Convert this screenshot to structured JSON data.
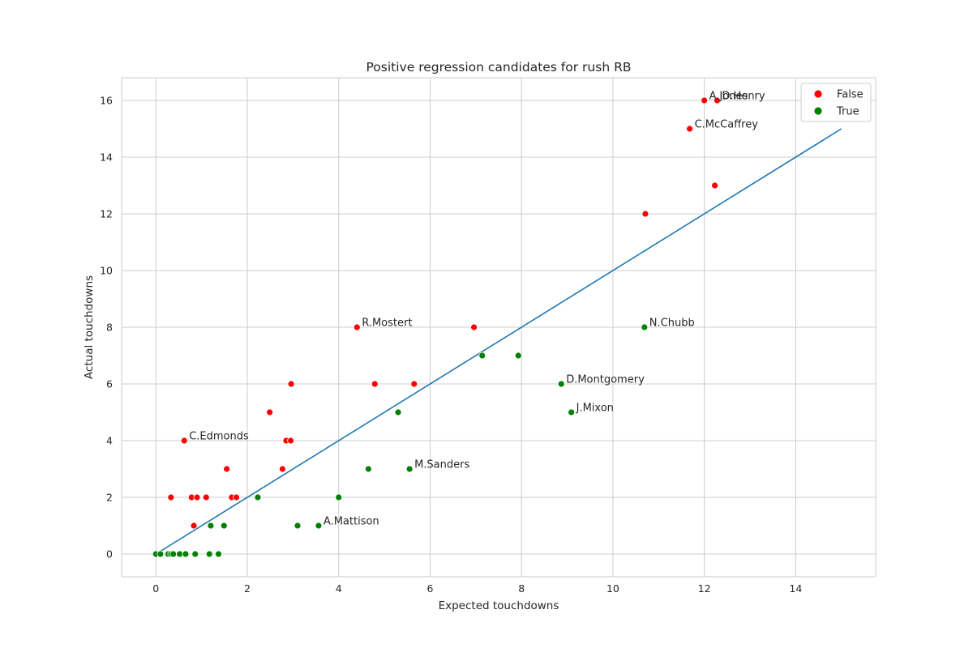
{
  "chart_data": {
    "type": "scatter",
    "title": "Positive regression candidates for rush RB",
    "xlabel": "Expected touchdowns",
    "ylabel": "Actual touchdowns",
    "xlim": [
      -0.75,
      15.75
    ],
    "ylim": [
      -0.8,
      16.8
    ],
    "xticks": [
      0,
      2,
      4,
      6,
      8,
      10,
      12,
      14
    ],
    "yticks": [
      0,
      2,
      4,
      6,
      8,
      10,
      12,
      14,
      16
    ],
    "grid": true,
    "legend_position": "top-right",
    "series": [
      {
        "name": "False",
        "color": "#ff0000",
        "points": [
          [
            12.0,
            16
          ],
          [
            12.28,
            16
          ],
          [
            11.68,
            15
          ],
          [
            12.23,
            13
          ],
          [
            10.71,
            12
          ],
          [
            4.4,
            8
          ],
          [
            6.96,
            8
          ],
          [
            2.96,
            6
          ],
          [
            4.79,
            6
          ],
          [
            5.65,
            6
          ],
          [
            2.49,
            5
          ],
          [
            0.62,
            4
          ],
          [
            2.85,
            4
          ],
          [
            2.95,
            4
          ],
          [
            1.55,
            3
          ],
          [
            2.77,
            3
          ],
          [
            0.33,
            2
          ],
          [
            0.78,
            2
          ],
          [
            0.9,
            2
          ],
          [
            1.1,
            2
          ],
          [
            1.66,
            2
          ],
          [
            1.76,
            2
          ],
          [
            0.83,
            1
          ]
        ]
      },
      {
        "name": "True",
        "color": "#008000",
        "points": [
          [
            10.69,
            8
          ],
          [
            7.14,
            7
          ],
          [
            7.93,
            7
          ],
          [
            8.87,
            6
          ],
          [
            9.09,
            5
          ],
          [
            5.3,
            5
          ],
          [
            4.65,
            3
          ],
          [
            5.55,
            3
          ],
          [
            2.23,
            2
          ],
          [
            4.0,
            2
          ],
          [
            1.2,
            1
          ],
          [
            1.49,
            1
          ],
          [
            3.1,
            1
          ],
          [
            3.56,
            1
          ],
          [
            0.0,
            0
          ],
          [
            0.1,
            0
          ],
          [
            0.27,
            0
          ],
          [
            0.33,
            0
          ],
          [
            0.38,
            0
          ],
          [
            0.52,
            0
          ],
          [
            0.65,
            0
          ],
          [
            0.86,
            0
          ],
          [
            1.17,
            0
          ],
          [
            1.37,
            0
          ]
        ]
      }
    ],
    "reference_line": {
      "x": [
        0,
        15
      ],
      "y": [
        0,
        15
      ],
      "color": "#1f77b4"
    },
    "annotations": [
      {
        "text": "A.Jones",
        "x": 12.0,
        "y": 16
      },
      {
        "text": "D.Henry",
        "x": 12.28,
        "y": 16
      },
      {
        "text": "C.McCaffrey",
        "x": 11.68,
        "y": 15
      },
      {
        "text": "R.Mostert",
        "x": 4.4,
        "y": 8
      },
      {
        "text": "N.Chubb",
        "x": 10.69,
        "y": 8
      },
      {
        "text": "D.Montgomery",
        "x": 8.87,
        "y": 6
      },
      {
        "text": "J.Mixon",
        "x": 9.09,
        "y": 5
      },
      {
        "text": "C.Edmonds",
        "x": 0.62,
        "y": 4
      },
      {
        "text": "M.Sanders",
        "x": 5.55,
        "y": 3
      },
      {
        "text": "A.Mattison",
        "x": 3.56,
        "y": 1
      }
    ]
  }
}
